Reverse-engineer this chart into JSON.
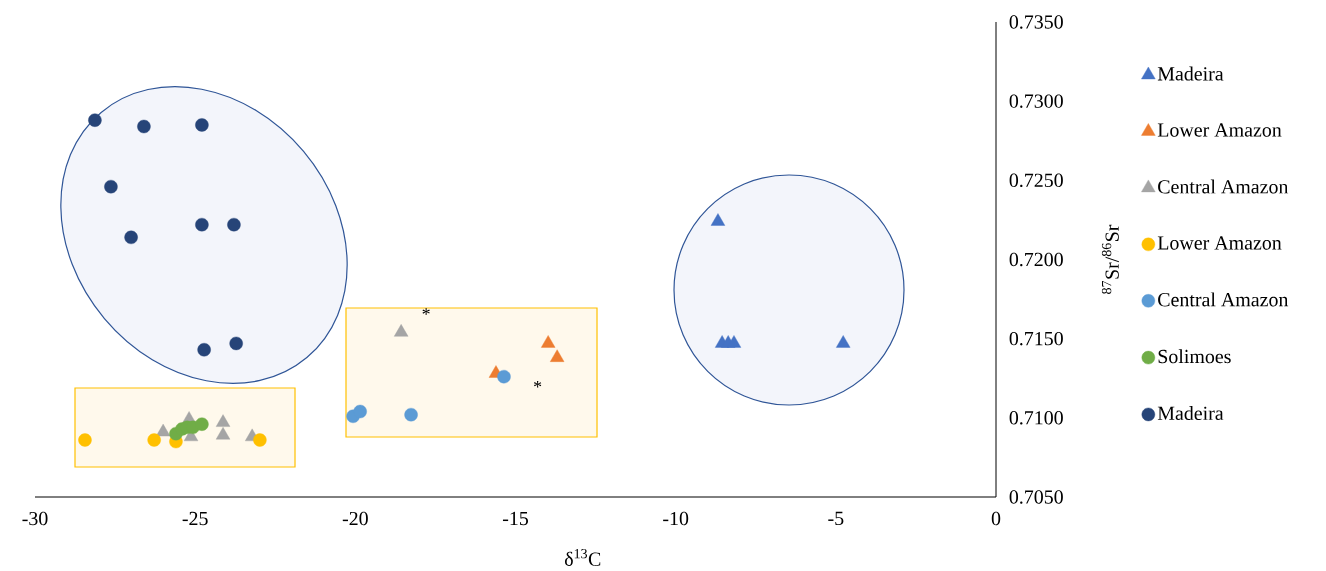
{
  "chart_data": {
    "type": "scatter",
    "xlabel": "δ$^{13}$C",
    "ylabel": "$^{87}$Sr/$^{86}$Sr",
    "xlim": [
      -30,
      0
    ],
    "ylim": [
      0.705,
      0.735
    ],
    "xticks": [
      -30,
      -25,
      -20,
      -15,
      -10,
      -5,
      0
    ],
    "yticks": [
      {
        "value": 0.705,
        "label": "0.7050"
      },
      {
        "value": 0.71,
        "label": "0.7100"
      },
      {
        "value": 0.715,
        "label": "0.7150"
      },
      {
        "value": 0.72,
        "label": "0.7200"
      },
      {
        "value": 0.725,
        "label": "0.7250"
      },
      {
        "value": 0.73,
        "label": "0.7300"
      },
      {
        "value": 0.735,
        "label": "0.7350"
      }
    ],
    "legend": "right",
    "grid": false,
    "series": [
      {
        "name": "Madeira",
        "color": "#4472c4",
        "marker": "triangle",
        "x": [
          -8.68,
          -8.55,
          -8.36,
          -8.18,
          -4.77
        ],
        "values": [
          0.7224,
          0.7147,
          0.7147,
          0.7147,
          0.7147
        ]
      },
      {
        "name": "Lower Amazon",
        "color": "#ed7d31",
        "marker": "triangle",
        "x": [
          -13.98,
          -13.7,
          -15.61
        ],
        "values": [
          0.7147,
          0.7138,
          0.7128
        ]
      },
      {
        "name": "Central Amazon",
        "color": "#a5a5a5",
        "marker": "triangle",
        "x": [
          -18.57,
          -26.0,
          -25.19,
          -25.13,
          -24.13,
          -24.13,
          -23.22
        ],
        "values": [
          0.7154,
          0.7091,
          0.7099,
          0.7088,
          0.7097,
          0.7089,
          0.7088
        ]
      },
      {
        "name": "Lower Amazon",
        "color": "#ffc000",
        "marker": "circle",
        "x": [
          -28.44,
          -26.28,
          -25.6,
          -22.98
        ],
        "values": [
          0.7086,
          0.7086,
          0.7085,
          0.7086
        ]
      },
      {
        "name": "Central Amazon",
        "color": "#5b9bd5",
        "marker": "circle",
        "x": [
          -20.07,
          -19.85,
          -18.26,
          -15.36
        ],
        "values": [
          0.7101,
          0.7104,
          0.7102,
          0.7126
        ]
      },
      {
        "name": "Solimoes",
        "color": "#70ad47",
        "marker": "circle",
        "x": [
          -25.6,
          -25.41,
          -25.25,
          -25.07,
          -24.79
        ],
        "values": [
          0.709,
          0.7093,
          0.7094,
          0.7094,
          0.7096
        ]
      },
      {
        "name": "Madeira",
        "color": "#264478",
        "marker": "circle",
        "x": [
          -28.13,
          -26.6,
          -24.79,
          -27.63,
          -24.79,
          -23.79,
          -27.0,
          -24.72,
          -23.72
        ],
        "values": [
          0.7288,
          0.7284,
          0.7285,
          0.7246,
          0.7222,
          0.7222,
          0.7214,
          0.7143,
          0.7147
        ]
      }
    ],
    "annotations": [
      "*",
      "*"
    ]
  }
}
